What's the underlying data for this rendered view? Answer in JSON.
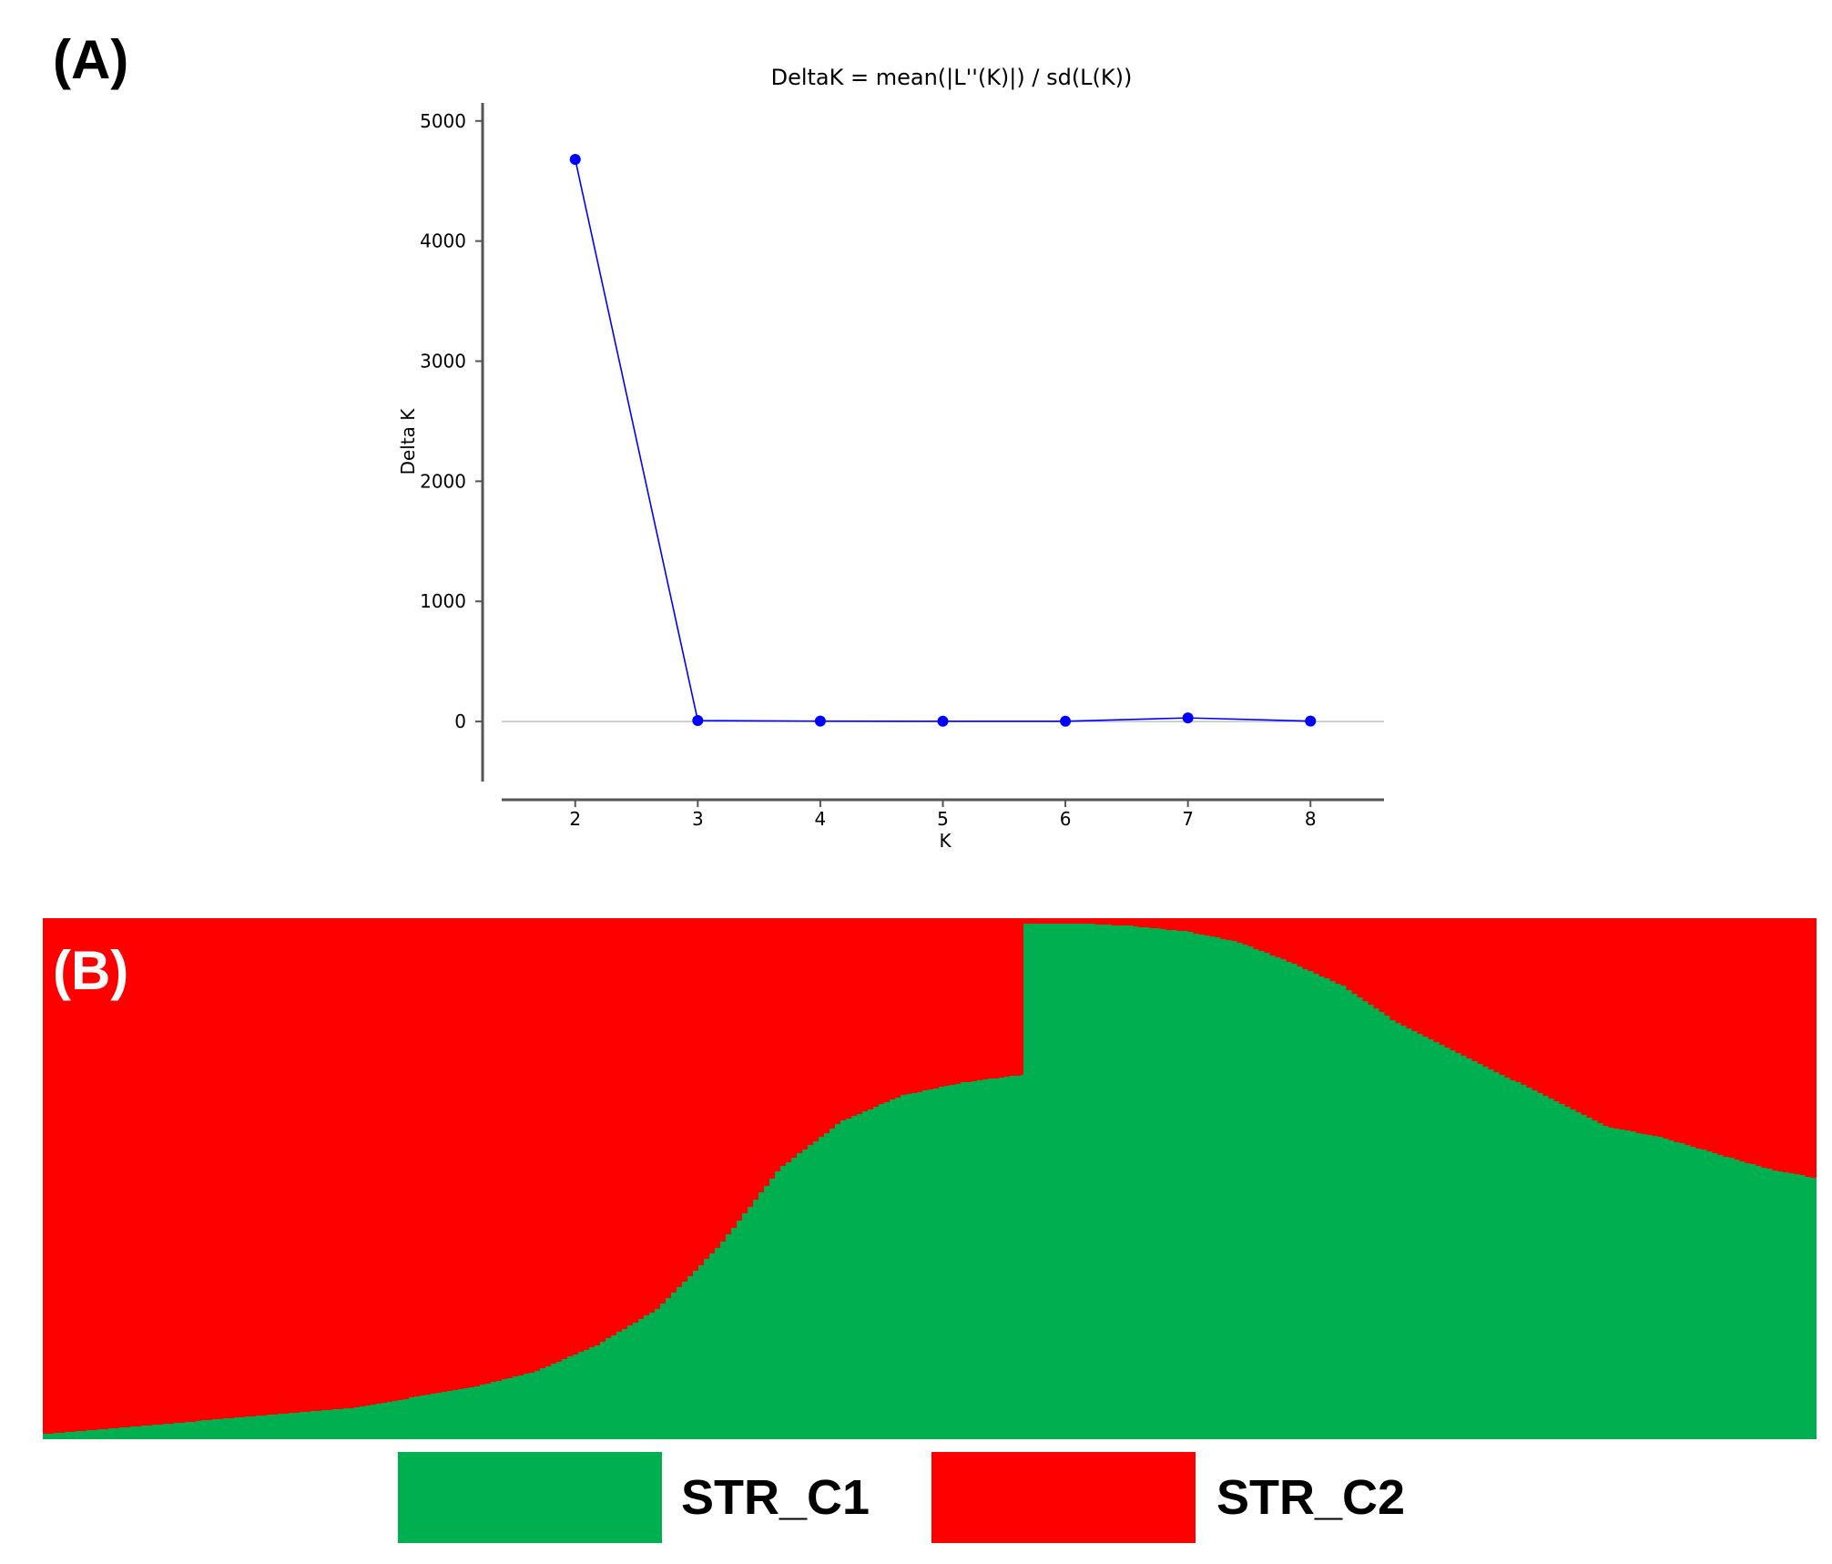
{
  "panels": {
    "a_label": "(A)",
    "b_label": "(B)"
  },
  "chart_data": [
    {
      "type": "line",
      "title": "DeltaK = mean(|L''(K)|) / sd(L(K))",
      "xlabel": "K",
      "ylabel": "Delta K",
      "x": [
        2,
        3,
        4,
        5,
        6,
        7,
        8
      ],
      "y": [
        4680,
        8,
        3,
        2,
        2,
        30,
        3
      ],
      "xlim": [
        1.4,
        8.6
      ],
      "ylim": [
        -500,
        5150
      ],
      "yticks": [
        0,
        1000,
        2000,
        3000,
        4000,
        5000
      ],
      "xticks": [
        2,
        3,
        4,
        5,
        6,
        7,
        8
      ],
      "grid": false,
      "zero_line": true,
      "color": "#0000ff"
    },
    {
      "type": "bar",
      "stacked": true,
      "colors": {
        "STR_C1": "#00b050",
        "STR_C2": "#ff0000"
      },
      "legend": [
        "STR_C1",
        "STR_C2"
      ],
      "group1_green_fraction": [
        0.01,
        0.02,
        0.03,
        0.04,
        0.05,
        0.06,
        0.08,
        0.1,
        0.13,
        0.18,
        0.25,
        0.37,
        0.52,
        0.61,
        0.66,
        0.685,
        0.7
      ],
      "group2_green_fraction": [
        0.99,
        0.99,
        0.985,
        0.975,
        0.955,
        0.915,
        0.87,
        0.8,
        0.75,
        0.7,
        0.65,
        0.6,
        0.58,
        0.55,
        0.52,
        0.5
      ]
    }
  ]
}
